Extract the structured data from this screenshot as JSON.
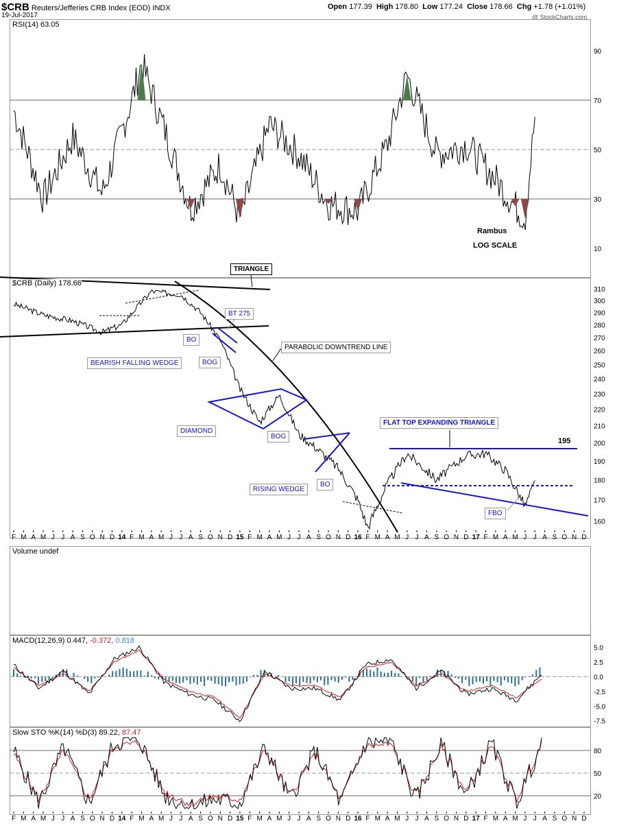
{
  "header": {
    "symbol": "$CRB",
    "description": "Reuters/Jefferies CRB Index (EOD)",
    "exchange": "INDX",
    "date": "19-Jul-2017",
    "open_label": "Open",
    "open": "177.39",
    "high_label": "High",
    "high": "178.80",
    "low_label": "Low",
    "low": "177.24",
    "close_label": "Close",
    "close": "178.66",
    "chg_label": "Chg",
    "chg": "+1.78 (+1.01%)",
    "watermark": "@ StockCharts.com"
  },
  "panels": {
    "rsi": {
      "label": "RSI(14) 63.05",
      "ticks": [
        "90",
        "70",
        "50",
        "30",
        "10"
      ]
    },
    "price": {
      "label": "$CRB (Daily) 178.66",
      "ticks": [
        "310",
        "300",
        "290",
        "280",
        "270",
        "260",
        "250",
        "240",
        "230",
        "220",
        "210",
        "200",
        "190",
        "180",
        "170",
        "160"
      ]
    },
    "volume": {
      "label": "Volume undef"
    },
    "macd": {
      "label": "MACD(12,26,9) 0.447,",
      "label_signal": "-0.372,",
      "label_hist": "0.818",
      "ticks": [
        "5.0",
        "2.5",
        "0.0",
        "-2.5",
        "-5.0",
        "-7.5"
      ]
    },
    "sto": {
      "label": "Slow STO %K(14) %D(3) 89.22,",
      "label_d": "87.47",
      "ticks": [
        "80",
        "50",
        "20"
      ]
    }
  },
  "months": [
    "F",
    "M",
    "A",
    "M",
    "J",
    "J",
    "A",
    "S",
    "O",
    "N",
    "D",
    "14",
    "F",
    "M",
    "A",
    "M",
    "J",
    "J",
    "A",
    "S",
    "O",
    "N",
    "D",
    "15",
    "F",
    "M",
    "A",
    "M",
    "J",
    "J",
    "A",
    "S",
    "O",
    "N",
    "D",
    "16",
    "F",
    "M",
    "A",
    "M",
    "J",
    "J",
    "A",
    "S",
    "O",
    "N",
    "D",
    "17",
    "F",
    "M",
    "A",
    "M",
    "J",
    "J",
    "A",
    "S",
    "O",
    "N",
    "D"
  ],
  "annotations": {
    "rambus": "Rambus",
    "log_scale": "LOG SCALE",
    "triangle": "TRIANGLE",
    "bt275": "BT 275",
    "bo1": "BO",
    "bog1": "BOG",
    "bearish_falling_wedge": "BEARISH FALLING WEDGE",
    "parabolic": "PARABOLIC DOWNTREND LINE",
    "diamond": "DIAMOND",
    "bog2": "BOG",
    "rising_wedge": "RISING WEDGE",
    "bo2": "BO",
    "flat_top": "FLAT TOP EXPANDING TRIANGLE",
    "level195": "195",
    "fbo": "FBO"
  },
  "colors": {
    "annotation_blue": "#1515cc",
    "rsi_overbought": "#4b7a4b",
    "rsi_oversold": "#8a4a4a",
    "macd_hist": "#2e6e8e",
    "macd_signal": "#cc2222",
    "sto_d": "#cc2222"
  },
  "chart_data": [
    {
      "type": "line",
      "title": "RSI(14) 63.05",
      "ylim": [
        0,
        100
      ],
      "hlines": [
        70,
        50,
        30
      ],
      "x": [
        "2013-02",
        "2013-05",
        "2013-08",
        "2013-11",
        "2014-02",
        "2014-03",
        "2014-05",
        "2014-08",
        "2014-11",
        "2015-01",
        "2015-04",
        "2015-07",
        "2015-10",
        "2016-01",
        "2016-04",
        "2016-06",
        "2016-09",
        "2016-12",
        "2017-03",
        "2017-05",
        "2017-06",
        "2017-07"
      ],
      "values": [
        66,
        30,
        55,
        32,
        70,
        85,
        62,
        26,
        44,
        22,
        60,
        48,
        28,
        25,
        52,
        80,
        48,
        52,
        38,
        27,
        22,
        63
      ]
    },
    {
      "type": "line",
      "title": "$CRB (Daily) 178.66",
      "scale": "log",
      "ylim": [
        155,
        315
      ],
      "x": [
        "2013-02",
        "2013-05",
        "2013-08",
        "2013-11",
        "2014-01",
        "2014-04",
        "2014-07",
        "2014-09",
        "2014-11",
        "2015-01",
        "2015-03",
        "2015-05",
        "2015-07",
        "2015-09",
        "2015-11",
        "2016-01",
        "2016-02",
        "2016-04",
        "2016-06",
        "2016-09",
        "2016-12",
        "2017-02",
        "2017-04",
        "2017-06",
        "2017-07"
      ],
      "values": [
        297,
        288,
        283,
        274,
        280,
        308,
        305,
        290,
        268,
        233,
        212,
        229,
        205,
        196,
        186,
        170,
        157,
        178,
        194,
        180,
        193,
        194,
        185,
        167,
        178.66
      ]
    },
    {
      "type": "line",
      "title": "MACD(12,26,9)",
      "ylim": [
        -8,
        6
      ],
      "series": [
        {
          "name": "MACD",
          "values": [
            2,
            -2,
            1,
            -3,
            3,
            5,
            -1,
            -3,
            -4,
            -7.5,
            1,
            -2,
            -2,
            -4,
            2,
            3,
            -2,
            1,
            -3,
            -2,
            -4,
            0.447
          ]
        },
        {
          "name": "Signal",
          "values": [
            1.5,
            -1.5,
            0.5,
            -2.5,
            2.5,
            4.5,
            -0.5,
            -2.5,
            -3.5,
            -7,
            0.5,
            -1.5,
            -1.5,
            -3.5,
            1.5,
            2.5,
            -1.5,
            0.5,
            -2.5,
            -1.5,
            -3.5,
            -0.372
          ]
        }
      ]
    },
    {
      "type": "line",
      "title": "Slow STO %K(14) %D(3)",
      "ylim": [
        0,
        100
      ],
      "hlines": [
        80,
        50,
        20
      ],
      "series": [
        {
          "name": "%K",
          "values": [
            80,
            10,
            85,
            10,
            90,
            95,
            20,
            5,
            15,
            10,
            85,
            15,
            80,
            10,
            90,
            92,
            15,
            88,
            20,
            90,
            10,
            89.22
          ]
        },
        {
          "name": "%D",
          "values": [
            75,
            15,
            80,
            15,
            85,
            90,
            25,
            10,
            20,
            15,
            80,
            20,
            75,
            15,
            85,
            88,
            20,
            84,
            25,
            85,
            15,
            87.47
          ]
        }
      ]
    }
  ]
}
